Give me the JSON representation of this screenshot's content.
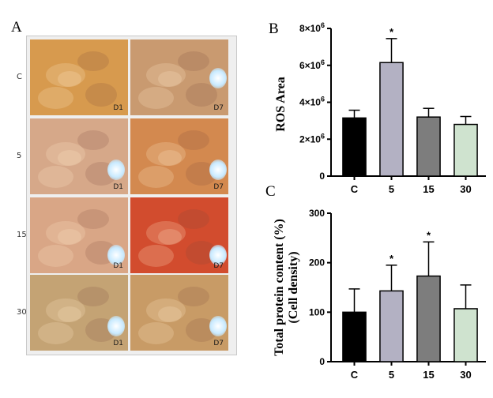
{
  "figure": {
    "panel_a": {
      "letter": "A",
      "row_labels": [
        "C",
        "5",
        "15",
        "30"
      ],
      "day_labels": [
        "D1",
        "D7"
      ],
      "tiles": [
        [
          "#d79a4e",
          "#c99a70"
        ],
        [
          "#d6a889",
          "#d3894f"
        ],
        [
          "#d9a686",
          "#d24c2e"
        ],
        [
          "#c4a374",
          "#c89b66"
        ]
      ],
      "glare_color": "#c8eaff"
    }
  },
  "chart_data": [
    {
      "panel": "B",
      "type": "bar",
      "categories": [
        "C",
        "5",
        "15",
        "30"
      ],
      "values": [
        3150000,
        6150000,
        3200000,
        2800000
      ],
      "errors": [
        420000,
        1300000,
        470000,
        430000
      ],
      "significance": [
        "",
        "*",
        "",
        ""
      ],
      "colors": [
        "#000000",
        "#b3b1c3",
        "#7d7d7d",
        "#cfe3cf"
      ],
      "ylabel": "ROS Area",
      "ylim": [
        0,
        8000000
      ],
      "yticks": [
        0,
        2000000,
        4000000,
        6000000,
        8000000
      ],
      "ytick_labels": [
        {
          "base": "0",
          "exp": ""
        },
        {
          "base": "2×10",
          "exp": "6"
        },
        {
          "base": "4×10",
          "exp": "6"
        },
        {
          "base": "6×10",
          "exp": "6"
        },
        {
          "base": "8×10",
          "exp": "6"
        }
      ],
      "grid": false
    },
    {
      "panel": "C",
      "type": "bar",
      "categories": [
        "C",
        "5",
        "15",
        "30"
      ],
      "values": [
        100,
        143,
        173,
        107
      ],
      "errors": [
        47,
        52,
        69,
        48
      ],
      "significance": [
        "",
        "*",
        "*",
        ""
      ],
      "colors": [
        "#000000",
        "#b3b1c3",
        "#7d7d7d",
        "#cfe3cf"
      ],
      "ylabel_lines": [
        "Total protein content (%)",
        "(Cell density)"
      ],
      "ylim": [
        0,
        300
      ],
      "yticks": [
        0,
        100,
        200,
        300
      ],
      "ytick_labels": [
        {
          "base": "0",
          "exp": ""
        },
        {
          "base": "100",
          "exp": ""
        },
        {
          "base": "200",
          "exp": ""
        },
        {
          "base": "300",
          "exp": ""
        }
      ],
      "grid": false
    }
  ]
}
